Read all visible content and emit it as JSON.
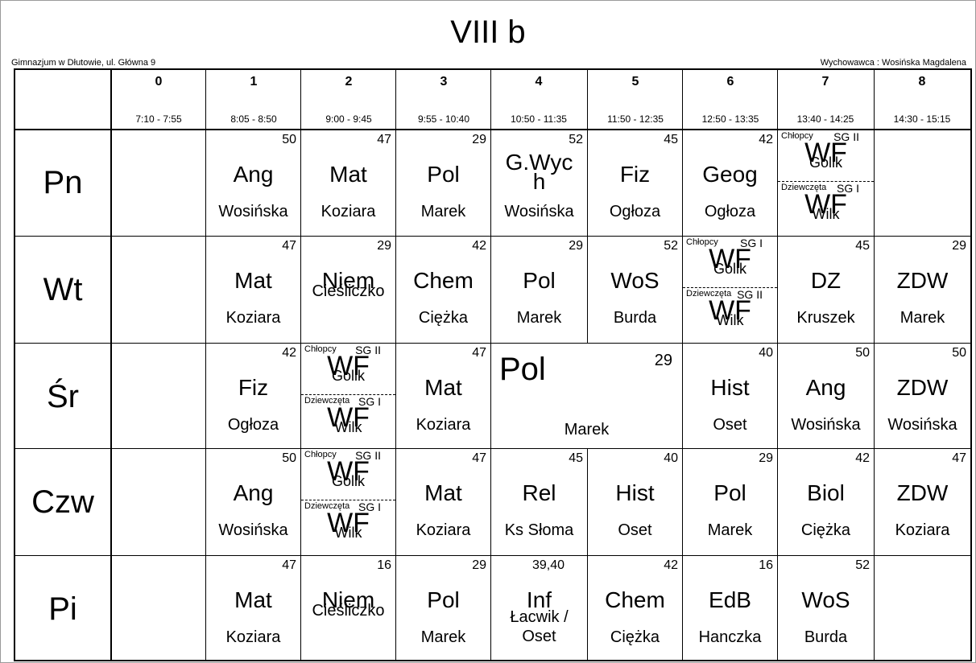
{
  "title": "VIII b",
  "school": "Gimnazjum w Dłutowie, ul. Główna 9",
  "teacher": "Wychowawca : Wosińska Magdalena",
  "periods": [
    {
      "num": "0",
      "time": "7:10 - 7:55"
    },
    {
      "num": "1",
      "time": "8:05 - 8:50"
    },
    {
      "num": "2",
      "time": "9:00 - 9:45"
    },
    {
      "num": "3",
      "time": "9:55 - 10:40"
    },
    {
      "num": "4",
      "time": "10:50 - 11:35"
    },
    {
      "num": "5",
      "time": "11:50 - 12:35"
    },
    {
      "num": "6",
      "time": "12:50 - 13:35"
    },
    {
      "num": "7",
      "time": "13:40 - 14:25"
    },
    {
      "num": "8",
      "time": "14:30 - 15:15"
    }
  ],
  "days": [
    "Pn",
    "Wt",
    "Śr",
    "Czw",
    "Pi"
  ],
  "split_groups": {
    "boys": "Chłopcy",
    "girls": "Dziewczęta",
    "sg1": "SG I",
    "sg2": "SG II",
    "subject": "WF",
    "teacher_boys": "Gollk",
    "teacher_girls": "Wilk"
  },
  "lessons": {
    "pn": {
      "p1": {
        "room": "50",
        "subject": "Ang",
        "teacher": "Wosińska"
      },
      "p2": {
        "room": "47",
        "subject": "Mat",
        "teacher": "Koziara"
      },
      "p3": {
        "room": "29",
        "subject": "Pol",
        "teacher": "Marek"
      },
      "p4": {
        "room": "52",
        "subject": "G.Wych",
        "teacher": "Wosińska"
      },
      "p5": {
        "room": "45",
        "subject": "Fiz",
        "teacher": "Ogłoza"
      },
      "p6": {
        "room": "42",
        "subject": "Geog",
        "teacher": "Ogłoza"
      }
    },
    "wt": {
      "p1": {
        "room": "47",
        "subject": "Mat",
        "teacher": "Koziara"
      },
      "p2": {
        "room": "29",
        "subject": "Niem",
        "teacher": "Cieśliczko"
      },
      "p3": {
        "room": "42",
        "subject": "Chem",
        "teacher": "Ciężka"
      },
      "p4": {
        "room": "29",
        "subject": "Pol",
        "teacher": "Marek"
      },
      "p5": {
        "room": "52",
        "subject": "WoS",
        "teacher": "Burda"
      },
      "p7": {
        "room": "45",
        "subject": "DZ",
        "teacher": "Kruszek"
      },
      "p8": {
        "room": "29",
        "subject": "ZDW",
        "teacher": "Marek"
      }
    },
    "sr": {
      "p1": {
        "room": "42",
        "subject": "Fiz",
        "teacher": "Ogłoza"
      },
      "p3": {
        "room": "47",
        "subject": "Mat",
        "teacher": "Koziara"
      },
      "p45": {
        "room": "29",
        "subject": "Pol",
        "teacher": "Marek"
      },
      "p6": {
        "room": "40",
        "subject": "Hist",
        "teacher": "Oset"
      },
      "p7": {
        "room": "50",
        "subject": "Ang",
        "teacher": "Wosińska"
      },
      "p8": {
        "room": "50",
        "subject": "ZDW",
        "teacher": "Wosińska"
      }
    },
    "czw": {
      "p1": {
        "room": "50",
        "subject": "Ang",
        "teacher": "Wosińska"
      },
      "p3": {
        "room": "47",
        "subject": "Mat",
        "teacher": "Koziara"
      },
      "p4": {
        "room": "45",
        "subject": "Rel",
        "teacher": "Ks Słoma"
      },
      "p5": {
        "room": "40",
        "subject": "Hist",
        "teacher": "Oset"
      },
      "p6": {
        "room": "29",
        "subject": "Pol",
        "teacher": "Marek"
      },
      "p7": {
        "room": "42",
        "subject": "Biol",
        "teacher": "Ciężka"
      },
      "p8": {
        "room": "47",
        "subject": "ZDW",
        "teacher": "Koziara"
      }
    },
    "pi": {
      "p1": {
        "room": "47",
        "subject": "Mat",
        "teacher": "Koziara"
      },
      "p2": {
        "room": "16",
        "subject": "Niem",
        "teacher": "Cieśliczko"
      },
      "p3": {
        "room": "29",
        "subject": "Pol",
        "teacher": "Marek"
      },
      "p4": {
        "room": "39,40",
        "subject": "Inf",
        "teacher": "Łacwik / Oset"
      },
      "p5": {
        "room": "42",
        "subject": "Chem",
        "teacher": "Ciężka"
      },
      "p6": {
        "room": "16",
        "subject": "EdB",
        "teacher": "Hanczka"
      },
      "p7": {
        "room": "52",
        "subject": "WoS",
        "teacher": "Burda"
      }
    }
  }
}
